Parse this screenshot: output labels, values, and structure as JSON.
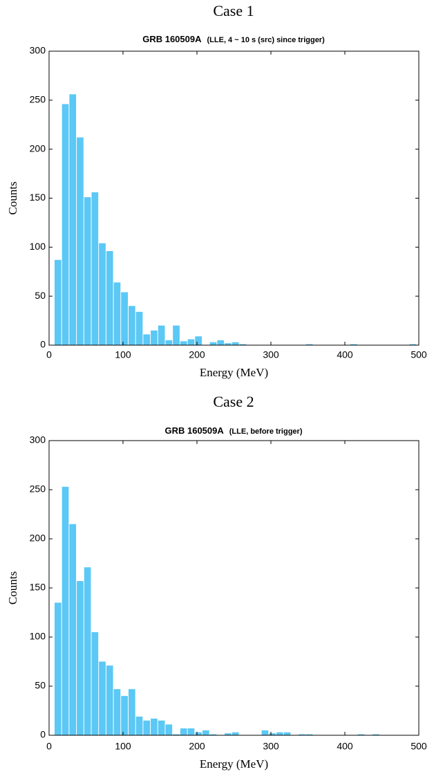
{
  "chart_data": [
    {
      "type": "histogram",
      "heading": "Case 1",
      "title": "GRB 160509A",
      "subtitle": "(LLE, 4 ~ 10 s (src) since trigger)",
      "xlabel": "Energy (MeV)",
      "ylabel": "Counts",
      "color": "#5bc8f5",
      "bins": [
        7,
        17,
        27,
        37,
        47,
        57,
        67,
        77,
        87,
        97,
        107,
        117,
        127,
        137,
        147,
        157,
        167,
        177,
        187,
        197,
        207,
        217,
        227,
        237,
        247,
        257,
        267,
        277,
        287,
        297,
        307,
        317,
        327,
        337,
        347,
        357,
        367,
        377,
        387,
        397,
        407,
        417,
        427,
        437,
        447,
        457,
        467,
        477,
        487,
        497
      ],
      "values": [
        87,
        246,
        256,
        212,
        151,
        156,
        104,
        96,
        64,
        54,
        40,
        34,
        11,
        15,
        20,
        5,
        20,
        4,
        6,
        9,
        0,
        3,
        5,
        2,
        3,
        1,
        0,
        0,
        0,
        0,
        0,
        0,
        0,
        0,
        1,
        0,
        0,
        0,
        0,
        0,
        1,
        0,
        0,
        0,
        0,
        0,
        0,
        0,
        1
      ],
      "xlim": [
        0,
        500
      ],
      "ylim": [
        0,
        300
      ],
      "xticks": [
        0,
        100,
        200,
        300,
        400,
        500
      ],
      "yticks": [
        0,
        50,
        100,
        150,
        200,
        250,
        300
      ]
    },
    {
      "type": "histogram",
      "heading": "Case 2",
      "title": "GRB 160509A",
      "subtitle": "(LLE, before trigger)",
      "xlabel": "Energy (MeV)",
      "ylabel": "Counts",
      "color": "#5bc8f5",
      "bins": [
        7,
        17,
        27,
        37,
        47,
        57,
        67,
        77,
        87,
        97,
        107,
        117,
        127,
        137,
        147,
        157,
        167,
        177,
        187,
        197,
        207,
        217,
        227,
        237,
        247,
        257,
        267,
        277,
        287,
        297,
        307,
        317,
        327,
        337,
        347,
        357,
        367,
        377,
        387,
        397,
        407,
        417,
        427,
        437,
        447,
        457,
        467,
        477,
        487,
        497
      ],
      "values": [
        135,
        253,
        215,
        157,
        171,
        105,
        75,
        71,
        47,
        40,
        47,
        19,
        15,
        17,
        15,
        11,
        1,
        7,
        7,
        3,
        5,
        1,
        0,
        2,
        3,
        0,
        0,
        0,
        5,
        2,
        3,
        3,
        0,
        1,
        1,
        0,
        0,
        0,
        0,
        0,
        0,
        1,
        0,
        1,
        0,
        0,
        0,
        0,
        0
      ],
      "xlim": [
        0,
        500
      ],
      "ylim": [
        0,
        300
      ],
      "xticks": [
        0,
        100,
        200,
        300,
        400,
        500
      ],
      "yticks": [
        0,
        50,
        100,
        150,
        200,
        250,
        300
      ]
    }
  ]
}
